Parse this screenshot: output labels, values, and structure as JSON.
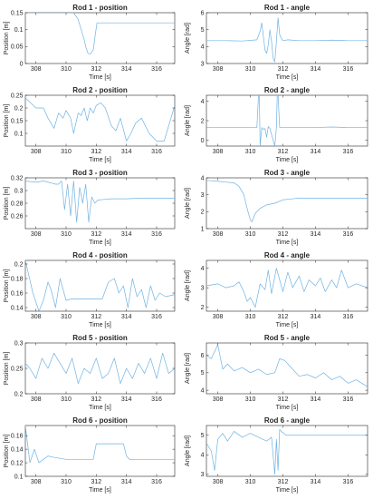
{
  "accent_color": "#6fb3e3",
  "chart_data": [
    {
      "type": "line",
      "title": "Rod 1 - position",
      "xlabel": "Time [s]",
      "ylabel": "Position [m]",
      "xlim": [
        307.3,
        317.2
      ],
      "ylim": [
        0,
        0.15
      ],
      "xticks": [
        308,
        310,
        312,
        314,
        316
      ],
      "yticks": [
        0,
        0.05,
        0.1,
        0.15
      ],
      "series": [
        {
          "x": [
            307.3,
            309.0,
            310.5,
            310.8,
            311.0,
            311.2,
            311.3,
            311.45,
            311.6,
            311.8,
            311.95,
            312.05,
            312.2,
            313.0,
            314.0,
            315.0,
            316.0,
            317.2
          ],
          "y": [
            0.15,
            0.15,
            0.15,
            0.13,
            0.1,
            0.07,
            0.05,
            0.03,
            0.028,
            0.04,
            0.09,
            0.12,
            0.12,
            0.12,
            0.12,
            0.12,
            0.12,
            0.12
          ]
        }
      ]
    },
    {
      "type": "line",
      "title": "Rod 1 - angle",
      "xlabel": "Time [s]",
      "ylabel": "Angle [rad]",
      "xlim": [
        307.3,
        317.2
      ],
      "ylim": [
        3,
        6
      ],
      "xticks": [
        308,
        310,
        312,
        314,
        316
      ],
      "yticks": [
        3,
        4,
        5,
        6
      ],
      "series": [
        {
          "x": [
            307.3,
            308.5,
            309.5,
            310.4,
            310.6,
            310.7,
            310.8,
            310.9,
            311.0,
            311.1,
            311.2,
            311.3,
            311.4,
            311.5,
            311.6,
            311.7,
            311.8,
            311.9,
            312.0,
            312.3,
            313.0,
            314.0,
            315.0,
            316.0,
            317.2
          ],
          "y": [
            4.35,
            4.35,
            4.33,
            4.4,
            4.9,
            5.4,
            4.6,
            3.8,
            3.6,
            4.1,
            5.0,
            4.3,
            3.3,
            3.1,
            4.3,
            5.7,
            4.7,
            4.5,
            4.35,
            4.4,
            4.35,
            4.35,
            4.38,
            4.35,
            4.35
          ]
        }
      ]
    },
    {
      "type": "line",
      "title": "Rod 2 - position",
      "xlabel": "Time [s]",
      "ylabel": "Position [m]",
      "xlim": [
        307.3,
        317.2
      ],
      "ylim": [
        0.05,
        0.25
      ],
      "xticks": [
        308,
        310,
        312,
        314,
        316
      ],
      "yticks": [
        0.1,
        0.15,
        0.2,
        0.25
      ],
      "series": [
        {
          "x": [
            307.3,
            308.0,
            308.5,
            308.8,
            309.2,
            309.5,
            309.8,
            310.0,
            310.3,
            310.5,
            310.8,
            311.0,
            311.2,
            311.4,
            311.6,
            311.8,
            312.0,
            312.3,
            312.6,
            313.0,
            313.3,
            313.6,
            314.0,
            314.3,
            314.6,
            315.0,
            315.5,
            316.0,
            316.5,
            317.2
          ],
          "y": [
            0.24,
            0.2,
            0.2,
            0.16,
            0.12,
            0.18,
            0.16,
            0.19,
            0.16,
            0.1,
            0.18,
            0.17,
            0.2,
            0.15,
            0.2,
            0.18,
            0.21,
            0.22,
            0.2,
            0.13,
            0.11,
            0.16,
            0.07,
            0.1,
            0.14,
            0.16,
            0.1,
            0.07,
            0.07,
            0.21
          ]
        }
      ]
    },
    {
      "type": "line",
      "title": "Rod 2 - angle",
      "xlabel": "Time [s]",
      "ylabel": "Angle [rad]",
      "xlim": [
        307.3,
        317.2
      ],
      "ylim": [
        -0.6,
        4.6
      ],
      "xticks": [
        308,
        310,
        312,
        314,
        316
      ],
      "yticks": [
        0,
        2,
        4
      ],
      "series": [
        {
          "x": [
            307.3,
            308.5,
            309.5,
            310.4,
            310.5,
            310.55,
            310.6,
            310.7,
            310.8,
            310.9,
            311.0,
            311.1,
            311.2,
            311.5,
            311.6,
            311.65,
            311.7,
            311.8,
            312.0,
            313.0,
            314.0,
            315.0,
            316.0,
            317.2
          ],
          "y": [
            1.3,
            1.3,
            1.3,
            1.3,
            4.6,
            4.6,
            -0.6,
            1.3,
            1.1,
            1.2,
            0.3,
            1.4,
            1.2,
            -0.6,
            1.3,
            4.6,
            4.6,
            1.3,
            1.3,
            1.3,
            1.3,
            1.35,
            1.3,
            1.3
          ]
        }
      ]
    },
    {
      "type": "line",
      "title": "Rod 3 - position",
      "xlabel": "Time [s]",
      "ylabel": "Position [m]",
      "xlim": [
        307.3,
        317.2
      ],
      "ylim": [
        0.24,
        0.32
      ],
      "xticks": [
        308,
        310,
        312,
        314,
        316
      ],
      "yticks": [
        0.26,
        0.28,
        0.3,
        0.32
      ],
      "series": [
        {
          "x": [
            307.3,
            308.0,
            308.5,
            309.0,
            309.3,
            309.5,
            309.7,
            309.9,
            310.1,
            310.3,
            310.5,
            310.7,
            310.9,
            311.1,
            311.3,
            311.5,
            311.7,
            311.9,
            312.1,
            312.5,
            313.0,
            314.0,
            315.0,
            316.0,
            317.2
          ],
          "y": [
            0.315,
            0.313,
            0.315,
            0.312,
            0.31,
            0.31,
            0.315,
            0.27,
            0.31,
            0.26,
            0.315,
            0.25,
            0.305,
            0.28,
            0.31,
            0.25,
            0.29,
            0.28,
            0.285,
            0.286,
            0.287,
            0.287,
            0.288,
            0.288,
            0.288
          ]
        }
      ]
    },
    {
      "type": "line",
      "title": "Rod 3 - angle",
      "xlabel": "Time [s]",
      "ylabel": "Angle [rad]",
      "xlim": [
        307.3,
        317.2
      ],
      "ylim": [
        1,
        4
      ],
      "xticks": [
        308,
        310,
        312,
        314,
        316
      ],
      "yticks": [
        1,
        2,
        3,
        4
      ],
      "series": [
        {
          "x": [
            307.3,
            308.0,
            308.5,
            309.0,
            309.3,
            309.6,
            309.8,
            310.0,
            310.1,
            310.3,
            310.6,
            311.0,
            311.5,
            312.0,
            312.5,
            313.0,
            314.0,
            315.0,
            316.0,
            317.2
          ],
          "y": [
            3.85,
            3.8,
            3.75,
            3.7,
            3.5,
            3.0,
            2.2,
            1.5,
            1.4,
            1.9,
            2.2,
            2.4,
            2.5,
            2.7,
            2.75,
            2.8,
            2.8,
            2.8,
            2.8,
            2.8
          ]
        }
      ]
    },
    {
      "type": "line",
      "title": "Rod 4 - position",
      "xlabel": "Time [s]",
      "ylabel": "Position [m]",
      "xlim": [
        307.3,
        317.2
      ],
      "ylim": [
        0.135,
        0.205
      ],
      "xticks": [
        308,
        310,
        312,
        314,
        316
      ],
      "yticks": [
        0.14,
        0.16,
        0.18,
        0.2
      ],
      "series": [
        {
          "x": [
            307.3,
            307.8,
            308.2,
            308.5,
            308.8,
            309.0,
            309.3,
            309.6,
            310.0,
            310.4,
            311.0,
            312.0,
            312.4,
            312.8,
            313.2,
            313.5,
            313.8,
            314.1,
            314.4,
            314.7,
            315.0,
            315.3,
            315.6,
            315.9,
            316.2,
            316.6,
            317.2
          ],
          "y": [
            0.205,
            0.16,
            0.135,
            0.15,
            0.175,
            0.165,
            0.14,
            0.18,
            0.15,
            0.152,
            0.152,
            0.152,
            0.152,
            0.175,
            0.18,
            0.16,
            0.17,
            0.14,
            0.18,
            0.155,
            0.165,
            0.14,
            0.17,
            0.15,
            0.16,
            0.155,
            0.158
          ]
        }
      ]
    },
    {
      "type": "line",
      "title": "Rod 4 - angle",
      "xlabel": "Time [s]",
      "ylabel": "Angle [rad]",
      "xlim": [
        307.3,
        317.2
      ],
      "ylim": [
        1.8,
        4.4
      ],
      "xticks": [
        308,
        310,
        312,
        314,
        316
      ],
      "yticks": [
        2,
        3,
        4
      ],
      "series": [
        {
          "x": [
            307.3,
            308.0,
            308.5,
            309.0,
            309.3,
            309.6,
            309.8,
            310.0,
            310.3,
            310.6,
            310.9,
            311.1,
            311.3,
            311.6,
            312.0,
            312.3,
            312.6,
            313.0,
            313.3,
            313.6,
            314.0,
            314.3,
            314.6,
            315.0,
            315.3,
            315.6,
            316.0,
            316.5,
            317.2
          ],
          "y": [
            3.1,
            3.2,
            3.0,
            3.1,
            3.3,
            2.8,
            2.3,
            2.5,
            2.0,
            3.2,
            2.9,
            3.9,
            2.7,
            4.0,
            2.8,
            3.8,
            3.0,
            3.6,
            2.8,
            3.4,
            3.1,
            3.5,
            2.8,
            3.4,
            3.0,
            3.9,
            3.0,
            3.2,
            3.0
          ]
        }
      ]
    },
    {
      "type": "line",
      "title": "Rod 5 - position",
      "xlabel": "Time [s]",
      "ylabel": "Position [m]",
      "xlim": [
        307.3,
        317.2
      ],
      "ylim": [
        0.2,
        0.3
      ],
      "xticks": [
        308,
        310,
        312,
        314,
        316
      ],
      "yticks": [
        0.2,
        0.25,
        0.3
      ],
      "series": [
        {
          "x": [
            307.3,
            307.6,
            308.0,
            308.4,
            308.8,
            309.2,
            309.6,
            310.0,
            310.4,
            310.8,
            311.2,
            311.6,
            312.0,
            312.4,
            312.8,
            313.2,
            313.6,
            314.0,
            314.4,
            314.8,
            315.2,
            315.6,
            316.0,
            316.4,
            316.8,
            317.2
          ],
          "y": [
            0.26,
            0.25,
            0.23,
            0.27,
            0.25,
            0.28,
            0.26,
            0.24,
            0.27,
            0.22,
            0.25,
            0.24,
            0.27,
            0.23,
            0.24,
            0.27,
            0.22,
            0.25,
            0.23,
            0.26,
            0.24,
            0.27,
            0.23,
            0.28,
            0.24,
            0.25
          ]
        }
      ]
    },
    {
      "type": "line",
      "title": "Rod 5 - angle",
      "xlabel": "Time [s]",
      "ylabel": "Angle [rad]",
      "xlim": [
        307.3,
        317.2
      ],
      "ylim": [
        3.8,
        6.7
      ],
      "xticks": [
        308,
        310,
        312,
        314,
        316
      ],
      "yticks": [
        4,
        5,
        6
      ],
      "series": [
        {
          "x": [
            307.3,
            307.6,
            308.0,
            308.3,
            308.6,
            309.0,
            309.5,
            310.0,
            310.5,
            311.0,
            311.5,
            311.8,
            312.1,
            312.5,
            313.0,
            313.5,
            314.0,
            314.5,
            315.0,
            315.5,
            316.0,
            316.5,
            317.2
          ],
          "y": [
            6.0,
            5.8,
            6.6,
            5.2,
            5.5,
            5.1,
            5.3,
            5.0,
            5.2,
            4.9,
            5.0,
            5.8,
            5.7,
            5.3,
            4.8,
            4.9,
            4.7,
            5.0,
            4.6,
            4.8,
            4.4,
            4.6,
            4.2
          ]
        }
      ]
    },
    {
      "type": "line",
      "title": "Rod 6 - position",
      "xlabel": "Time [s]",
      "ylabel": "Position [m]",
      "xlim": [
        307.3,
        317.2
      ],
      "ylim": [
        0.1,
        0.175
      ],
      "xticks": [
        308,
        310,
        312,
        314,
        316
      ],
      "yticks": [
        0.1,
        0.12,
        0.14,
        0.16
      ],
      "series": [
        {
          "x": [
            307.3,
            307.6,
            307.9,
            308.2,
            308.5,
            308.8,
            309.2,
            310.0,
            311.0,
            311.8,
            312.0,
            312.2,
            313.0,
            313.8,
            314.0,
            314.2,
            315.0,
            316.0,
            317.2
          ],
          "y": [
            0.175,
            0.12,
            0.14,
            0.12,
            0.125,
            0.13,
            0.128,
            0.125,
            0.125,
            0.125,
            0.148,
            0.148,
            0.148,
            0.148,
            0.13,
            0.125,
            0.125,
            0.125,
            0.125
          ]
        }
      ]
    },
    {
      "type": "line",
      "title": "Rod 6 - angle",
      "xlabel": "Time [s]",
      "ylabel": "Angle [rad]",
      "xlim": [
        307.3,
        317.2
      ],
      "ylim": [
        2.9,
        5.5
      ],
      "xticks": [
        308,
        310,
        312,
        314,
        316
      ],
      "yticks": [
        3,
        4,
        5
      ],
      "series": [
        {
          "x": [
            307.3,
            307.6,
            307.8,
            308.0,
            308.3,
            308.6,
            309.0,
            309.5,
            310.0,
            310.5,
            311.0,
            311.3,
            311.5,
            311.6,
            311.7,
            311.8,
            311.9,
            312.2,
            313.0,
            314.0,
            315.0,
            316.0,
            317.2
          ],
          "y": [
            4.6,
            4.2,
            3.2,
            4.8,
            5.1,
            4.7,
            5.2,
            4.9,
            5.1,
            4.9,
            4.7,
            4.9,
            3.0,
            4.8,
            3.2,
            5.3,
            5.2,
            5.0,
            5.0,
            5.0,
            5.0,
            5.0,
            5.0
          ]
        }
      ]
    }
  ]
}
